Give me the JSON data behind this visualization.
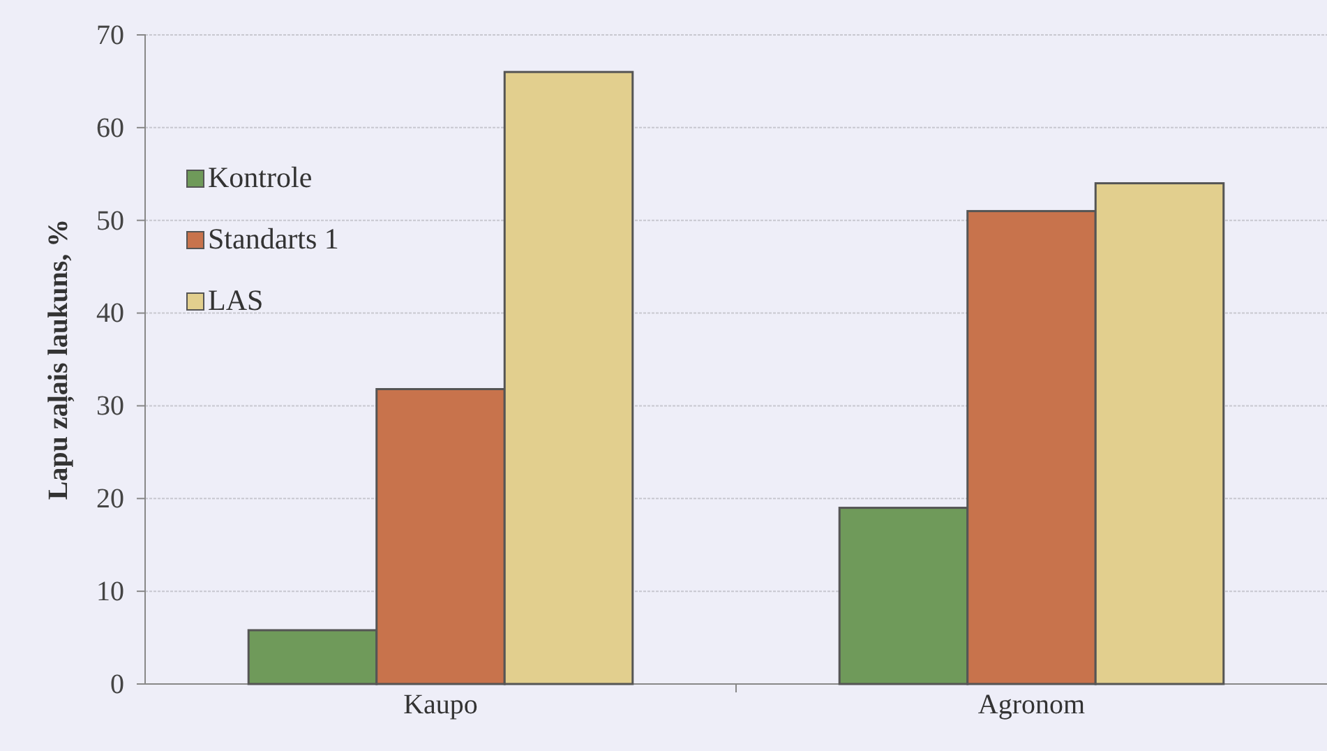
{
  "chart_data": {
    "type": "bar",
    "ylabel": "Lapu zaļais laukuns, %",
    "categories": [
      "Kaupo",
      "Agronom"
    ],
    "series": [
      {
        "name": "Kontrole",
        "color": "#6f9a5a",
        "values": [
          5.8,
          19
        ]
      },
      {
        "name": "Standarts 1",
        "color": "#c8734c",
        "values": [
          31.8,
          51
        ]
      },
      {
        "name": "LAS",
        "color": "#e2cf8e",
        "values": [
          66,
          54
        ]
      }
    ],
    "ylim": [
      0,
      70
    ],
    "yticks": [
      0,
      10,
      20,
      30,
      40,
      50,
      60,
      70
    ],
    "grid": "y",
    "legend": "top left"
  }
}
